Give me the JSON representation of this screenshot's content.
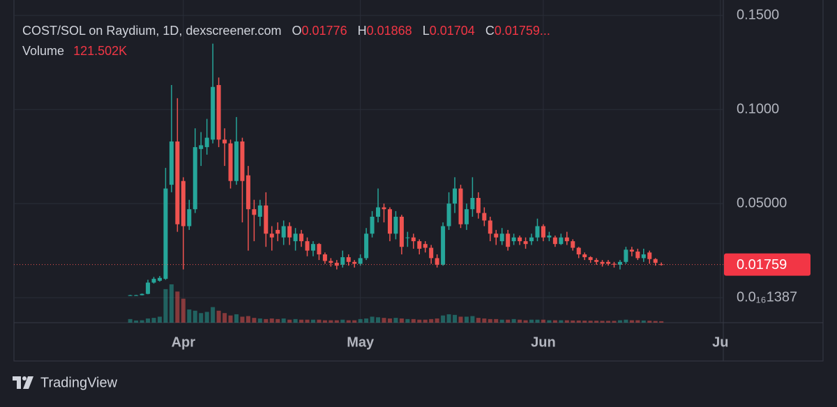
{
  "chart_data": {
    "type": "candlestick",
    "legend": {
      "symbol": "COST/SOL on Raydium, 1D, dexscreener.com",
      "o": "O",
      "h": "H",
      "l": "L",
      "c": "C",
      "close_text": "0.01759...",
      "volume_title": "Volume",
      "volume_label": "121.502K"
    },
    "x": [
      0,
      1,
      2,
      3,
      4,
      5,
      6,
      7,
      8,
      9,
      10,
      11,
      12,
      13,
      14,
      15,
      16,
      17,
      18,
      19,
      20,
      21,
      22,
      23,
      24,
      25,
      26,
      27,
      28,
      29,
      30,
      31,
      32,
      33,
      34,
      35,
      36,
      37,
      38,
      39,
      40,
      41,
      42,
      43,
      44,
      45,
      46,
      47,
      48,
      49,
      50,
      51,
      52,
      53,
      54,
      55,
      56,
      57,
      58,
      59,
      60,
      61,
      62,
      63,
      64,
      65,
      66,
      67,
      68,
      69,
      70,
      71,
      72,
      73,
      74,
      75,
      76,
      77,
      78,
      79,
      80,
      81,
      82,
      83,
      84,
      85,
      86,
      87,
      88,
      89,
      90
    ],
    "open": [
      0.0012,
      0.0013,
      0.0013,
      0.002,
      0.008,
      0.009,
      0.01,
      0.06,
      0.083,
      0.062,
      0.038,
      0.047,
      0.079,
      0.08,
      0.084,
      0.113,
      0.084,
      0.082,
      0.062,
      0.083,
      0.065,
      0.047,
      0.043,
      0.049,
      0.034,
      0.036,
      0.032,
      0.038,
      0.03,
      0.034,
      0.03,
      0.025,
      0.0285,
      0.023,
      0.0195,
      0.0185,
      0.0175,
      0.0215,
      0.019,
      0.018,
      0.021,
      0.034,
      0.043,
      0.048,
      0.047,
      0.034,
      0.043,
      0.032,
      0.032,
      0.03,
      0.0285,
      0.0265,
      0.021,
      0.0175,
      0.038,
      0.05,
      0.058,
      0.039,
      0.047,
      0.053,
      0.045,
      0.041,
      0.034,
      0.03,
      0.034,
      0.03,
      0.032,
      0.03,
      0.03,
      0.032,
      0.038,
      0.032,
      0.032,
      0.0285,
      0.032,
      0.03,
      0.0265,
      0.023,
      0.0215,
      0.02,
      0.019,
      0.019,
      0.018,
      0.0175,
      0.019,
      0.0255,
      0.0245,
      0.021,
      0.024,
      0.0205,
      0.01776
    ],
    "high": [
      0.0015,
      0.0015,
      0.0022,
      0.0095,
      0.011,
      0.0115,
      0.069,
      0.113,
      0.106,
      0.064,
      0.052,
      0.09,
      0.088,
      0.095,
      0.135,
      0.117,
      0.09,
      0.084,
      0.096,
      0.085,
      0.07,
      0.052,
      0.052,
      0.056,
      0.038,
      0.04,
      0.041,
      0.04,
      0.037,
      0.036,
      0.032,
      0.03,
      0.029,
      0.024,
      0.021,
      0.02,
      0.025,
      0.023,
      0.02,
      0.023,
      0.037,
      0.046,
      0.058,
      0.05,
      0.048,
      0.046,
      0.044,
      0.035,
      0.034,
      0.031,
      0.03,
      0.028,
      0.023,
      0.04,
      0.056,
      0.064,
      0.06,
      0.05,
      0.064,
      0.056,
      0.048,
      0.043,
      0.036,
      0.037,
      0.036,
      0.034,
      0.033,
      0.032,
      0.034,
      0.042,
      0.039,
      0.035,
      0.033,
      0.034,
      0.035,
      0.031,
      0.027,
      0.024,
      0.022,
      0.021,
      0.02,
      0.02,
      0.019,
      0.02,
      0.027,
      0.027,
      0.026,
      0.026,
      0.025,
      0.021,
      0.01868
    ],
    "low": [
      0.001,
      0.0011,
      0.0012,
      0.0018,
      0.0075,
      0.0085,
      0.0095,
      0.056,
      0.035,
      0.015,
      0.036,
      0.045,
      0.07,
      0.076,
      0.082,
      0.08,
      0.07,
      0.058,
      0.06,
      0.04,
      0.025,
      0.03,
      0.038,
      0.027,
      0.025,
      0.03,
      0.028,
      0.028,
      0.025,
      0.027,
      0.022,
      0.022,
      0.02,
      0.018,
      0.0165,
      0.015,
      0.016,
      0.017,
      0.016,
      0.017,
      0.02,
      0.032,
      0.04,
      0.04,
      0.03,
      0.031,
      0.023,
      0.027,
      0.026,
      0.023,
      0.024,
      0.018,
      0.016,
      0.017,
      0.036,
      0.045,
      0.037,
      0.036,
      0.043,
      0.042,
      0.038,
      0.03,
      0.028,
      0.028,
      0.025,
      0.028,
      0.028,
      0.026,
      0.028,
      0.03,
      0.03,
      0.03,
      0.027,
      0.028,
      0.028,
      0.025,
      0.021,
      0.02,
      0.0185,
      0.0175,
      0.0165,
      0.017,
      0.016,
      0.015,
      0.018,
      0.022,
      0.02,
      0.019,
      0.018,
      0.017,
      0.01704
    ],
    "close": [
      0.0013,
      0.0013,
      0.002,
      0.008,
      0.01,
      0.0105,
      0.058,
      0.083,
      0.039,
      0.038,
      0.047,
      0.08,
      0.081,
      0.085,
      0.112,
      0.084,
      0.082,
      0.062,
      0.083,
      0.062,
      0.047,
      0.044,
      0.049,
      0.034,
      0.032,
      0.034,
      0.038,
      0.032,
      0.034,
      0.03,
      0.025,
      0.0285,
      0.023,
      0.0195,
      0.0185,
      0.017,
      0.0215,
      0.019,
      0.018,
      0.021,
      0.034,
      0.043,
      0.048,
      0.047,
      0.034,
      0.043,
      0.027,
      0.032,
      0.03,
      0.026,
      0.0265,
      0.021,
      0.0175,
      0.038,
      0.05,
      0.058,
      0.039,
      0.047,
      0.053,
      0.045,
      0.041,
      0.034,
      0.032,
      0.034,
      0.027,
      0.032,
      0.03,
      0.0285,
      0.032,
      0.038,
      0.032,
      0.033,
      0.0285,
      0.032,
      0.03,
      0.0265,
      0.023,
      0.0215,
      0.02,
      0.019,
      0.018,
      0.018,
      0.0175,
      0.019,
      0.0255,
      0.0245,
      0.021,
      0.023,
      0.0205,
      0.0185,
      0.01759
    ],
    "volume": [
      300000,
      180000,
      200000,
      350000,
      400000,
      500000,
      2800000,
      3200000,
      2600000,
      2000000,
      1100000,
      1000000,
      800000,
      900000,
      1300000,
      1000000,
      800000,
      600000,
      700000,
      500000,
      550000,
      400000,
      350000,
      300000,
      350000,
      300000,
      350000,
      250000,
      300000,
      250000,
      250000,
      250000,
      250000,
      200000,
      200000,
      200000,
      250000,
      200000,
      200000,
      300000,
      350000,
      500000,
      450000,
      400000,
      350000,
      400000,
      350000,
      300000,
      300000,
      250000,
      250000,
      300000,
      350000,
      600000,
      700000,
      650000,
      500000,
      500000,
      550000,
      400000,
      350000,
      300000,
      300000,
      250000,
      250000,
      300000,
      250000,
      200000,
      250000,
      250000,
      250000,
      200000,
      200000,
      200000,
      200000,
      180000,
      180000,
      170000,
      160000,
      160000,
      150000,
      150000,
      150000,
      200000,
      250000,
      200000,
      200000,
      180000,
      160000,
      140000,
      121502
    ],
    "up_color": "#26a69a",
    "down_color": "#ef5350",
    "xlim": [
      -19.7,
      100.5
    ],
    "xticks": [
      {
        "value": 9,
        "label": "Apr"
      },
      {
        "value": 39,
        "label": "May"
      },
      {
        "value": 70,
        "label": "Jun"
      },
      {
        "value": 100,
        "label": "Ju"
      }
    ],
    "ylim": [
      -0.0133,
      0.1582
    ],
    "yticks": [
      {
        "value": 1.387e-17,
        "label": "0.0₁₆1387"
      },
      {
        "value": 0.05,
        "label": "0.05000"
      },
      {
        "value": 0.1,
        "label": "0.1000"
      },
      {
        "value": 0.15,
        "label": "0.1500"
      }
    ],
    "grid": true
  },
  "footer": {
    "brand": "TradingView"
  }
}
